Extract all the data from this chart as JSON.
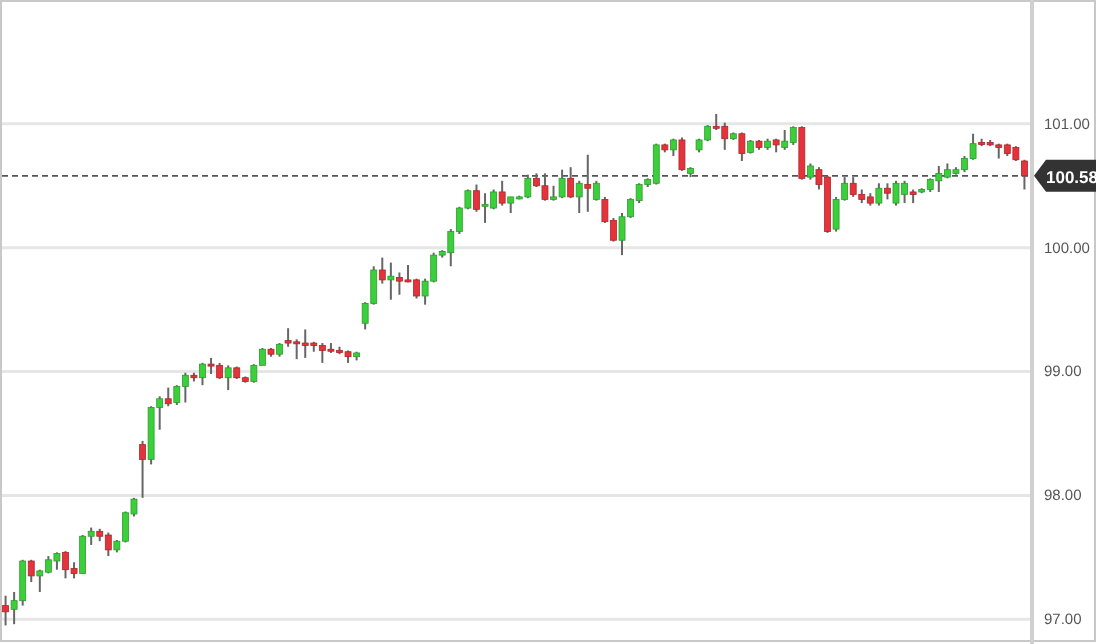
{
  "chart_data": {
    "type": "candlestick",
    "categories": [
      null,
      null,
      null,
      null,
      null,
      null,
      null,
      null,
      null,
      null,
      null,
      null,
      null,
      null,
      null,
      null,
      null,
      null,
      null,
      null,
      null,
      null,
      null,
      null,
      null,
      null,
      null,
      null,
      null,
      null,
      null,
      null,
      null,
      null,
      null,
      null,
      null,
      null,
      null,
      null,
      null,
      null,
      null,
      null,
      null,
      null,
      null,
      null,
      null,
      null,
      null,
      null,
      null,
      null,
      null,
      null,
      null,
      null,
      null,
      null,
      null,
      null,
      null,
      null,
      null,
      null,
      null,
      null,
      null,
      null,
      null,
      null,
      null,
      null,
      null,
      null,
      null,
      null,
      null,
      null,
      null,
      null,
      null,
      null,
      null,
      null,
      null,
      null,
      null,
      null,
      null,
      null,
      null,
      null,
      null,
      null,
      null,
      null,
      null,
      null,
      null,
      null,
      null,
      null,
      null,
      null,
      null,
      null,
      null,
      null,
      null,
      null,
      null,
      null,
      null,
      null,
      null,
      null,
      null,
      null
    ],
    "ohlc": [
      [
        97.11,
        97.19,
        96.95,
        97.06
      ],
      [
        97.08,
        97.22,
        96.96,
        97.15
      ],
      [
        97.15,
        97.48,
        97.11,
        97.47
      ],
      [
        97.47,
        97.48,
        97.3,
        97.35
      ],
      [
        97.35,
        97.4,
        97.22,
        97.39
      ],
      [
        97.38,
        97.51,
        97.37,
        97.48
      ],
      [
        97.47,
        97.54,
        97.4,
        97.53
      ],
      [
        97.54,
        97.55,
        97.33,
        97.4
      ],
      [
        97.41,
        97.46,
        97.33,
        97.37
      ],
      [
        97.37,
        97.68,
        97.37,
        97.67
      ],
      [
        97.67,
        97.74,
        97.6,
        97.71
      ],
      [
        97.71,
        97.73,
        97.63,
        97.67
      ],
      [
        97.68,
        97.7,
        97.51,
        97.56
      ],
      [
        97.56,
        97.64,
        97.54,
        97.63
      ],
      [
        97.63,
        97.87,
        97.62,
        97.86
      ],
      [
        97.85,
        97.98,
        97.83,
        97.97
      ],
      [
        98.41,
        98.44,
        97.98,
        98.29
      ],
      [
        98.29,
        98.72,
        98.25,
        98.71
      ],
      [
        98.71,
        98.8,
        98.53,
        98.78
      ],
      [
        98.78,
        98.87,
        98.72,
        98.74
      ],
      [
        98.75,
        98.89,
        98.73,
        98.88
      ],
      [
        98.88,
        98.99,
        98.75,
        98.97
      ],
      [
        98.97,
        98.99,
        98.92,
        98.95
      ],
      [
        98.95,
        99.07,
        98.89,
        99.06
      ],
      [
        99.06,
        99.11,
        98.98,
        99.05
      ],
      [
        99.05,
        99.07,
        98.94,
        98.95
      ],
      [
        98.95,
        99.05,
        98.85,
        99.03
      ],
      [
        99.03,
        99.04,
        98.94,
        98.95
      ],
      [
        98.95,
        98.96,
        98.91,
        98.92
      ],
      [
        98.92,
        99.06,
        98.91,
        99.05
      ],
      [
        99.05,
        99.19,
        99.05,
        99.18
      ],
      [
        99.18,
        99.19,
        99.12,
        99.14
      ],
      [
        99.14,
        99.23,
        99.12,
        99.22
      ],
      [
        99.25,
        99.35,
        99.2,
        99.23
      ],
      [
        99.24,
        99.26,
        99.1,
        99.23
      ],
      [
        99.23,
        99.34,
        99.11,
        99.21
      ],
      [
        99.23,
        99.24,
        99.16,
        99.21
      ],
      [
        99.21,
        99.23,
        99.07,
        99.17
      ],
      [
        99.18,
        99.23,
        99.15,
        99.17
      ],
      [
        99.17,
        99.2,
        99.14,
        99.16
      ],
      [
        99.16,
        99.17,
        99.07,
        99.12
      ],
      [
        99.12,
        99.16,
        99.09,
        99.15
      ],
      [
        99.39,
        99.56,
        99.34,
        99.55
      ],
      [
        99.55,
        99.85,
        99.54,
        99.82
      ],
      [
        99.82,
        99.92,
        99.71,
        99.74
      ],
      [
        99.74,
        99.88,
        99.58,
        99.77
      ],
      [
        99.76,
        99.8,
        99.62,
        99.73
      ],
      [
        99.74,
        99.86,
        99.72,
        99.73
      ],
      [
        99.74,
        99.75,
        99.59,
        99.61
      ],
      [
        99.61,
        99.75,
        99.54,
        99.73
      ],
      [
        99.73,
        99.96,
        99.72,
        99.94
      ],
      [
        99.94,
        99.98,
        99.92,
        99.97
      ],
      [
        99.96,
        100.15,
        99.85,
        100.13
      ],
      [
        100.13,
        100.33,
        100.11,
        100.32
      ],
      [
        100.32,
        100.47,
        100.31,
        100.46
      ],
      [
        100.46,
        100.51,
        100.29,
        100.31
      ],
      [
        100.34,
        100.44,
        100.2,
        100.35
      ],
      [
        100.32,
        100.47,
        100.31,
        100.45
      ],
      [
        100.45,
        100.54,
        100.34,
        100.36
      ],
      [
        100.36,
        100.41,
        100.28,
        100.41
      ],
      [
        100.4,
        100.42,
        100.39,
        100.41
      ],
      [
        100.41,
        100.59,
        100.4,
        100.56
      ],
      [
        100.56,
        100.6,
        100.49,
        100.5
      ],
      [
        100.5,
        100.6,
        100.38,
        100.39
      ],
      [
        100.39,
        100.5,
        100.38,
        100.41
      ],
      [
        100.41,
        100.63,
        100.4,
        100.56
      ],
      [
        100.56,
        100.65,
        100.4,
        100.41
      ],
      [
        100.41,
        100.54,
        100.28,
        100.52
      ],
      [
        100.51,
        100.75,
        100.29,
        100.48
      ],
      [
        100.39,
        100.54,
        100.38,
        100.52
      ],
      [
        100.39,
        100.41,
        100.2,
        100.21
      ],
      [
        100.22,
        100.24,
        100.05,
        100.06
      ],
      [
        100.06,
        100.28,
        99.94,
        100.25
      ],
      [
        100.25,
        100.4,
        100.24,
        100.39
      ],
      [
        100.38,
        100.52,
        100.36,
        100.51
      ],
      [
        100.51,
        100.56,
        100.49,
        100.55
      ],
      [
        100.52,
        100.84,
        100.51,
        100.83
      ],
      [
        100.83,
        100.84,
        100.77,
        100.79
      ],
      [
        100.79,
        100.88,
        100.74,
        100.87
      ],
      [
        100.87,
        100.89,
        100.62,
        100.63
      ],
      [
        100.6,
        100.65,
        100.57,
        100.64
      ],
      [
        100.79,
        100.88,
        100.77,
        100.87
      ],
      [
        100.87,
        100.99,
        100.86,
        100.98
      ],
      [
        100.98,
        101.08,
        100.95,
        100.97
      ],
      [
        100.98,
        101.01,
        100.79,
        100.88
      ],
      [
        100.88,
        100.93,
        100.87,
        100.92
      ],
      [
        100.92,
        100.93,
        100.7,
        100.76
      ],
      [
        100.77,
        100.87,
        100.76,
        100.86
      ],
      [
        100.86,
        100.87,
        100.79,
        100.81
      ],
      [
        100.81,
        100.88,
        100.79,
        100.86
      ],
      [
        100.87,
        100.88,
        100.77,
        100.83
      ],
      [
        100.81,
        100.95,
        100.79,
        100.86
      ],
      [
        100.85,
        100.98,
        100.83,
        100.97
      ],
      [
        100.97,
        100.98,
        100.55,
        100.56
      ],
      [
        100.57,
        100.68,
        100.55,
        100.66
      ],
      [
        100.63,
        100.65,
        100.47,
        100.51
      ],
      [
        100.57,
        100.58,
        100.12,
        100.13
      ],
      [
        100.15,
        100.41,
        100.13,
        100.39
      ],
      [
        100.39,
        100.57,
        100.38,
        100.52
      ],
      [
        100.52,
        100.57,
        100.41,
        100.43
      ],
      [
        100.43,
        100.47,
        100.36,
        100.39
      ],
      [
        100.41,
        100.44,
        100.34,
        100.36
      ],
      [
        100.36,
        100.52,
        100.34,
        100.48
      ],
      [
        100.48,
        100.52,
        100.39,
        100.44
      ],
      [
        100.36,
        100.54,
        100.34,
        100.52
      ],
      [
        100.43,
        100.54,
        100.36,
        100.52
      ],
      [
        100.45,
        100.47,
        100.36,
        100.43
      ],
      [
        100.45,
        100.48,
        100.44,
        100.47
      ],
      [
        100.47,
        100.56,
        100.45,
        100.55
      ],
      [
        100.54,
        100.66,
        100.45,
        100.6
      ],
      [
        100.57,
        100.68,
        100.56,
        100.63
      ],
      [
        100.6,
        100.65,
        100.59,
        100.63
      ],
      [
        100.63,
        100.74,
        100.61,
        100.72
      ],
      [
        100.72,
        100.92,
        100.71,
        100.84
      ],
      [
        100.85,
        100.88,
        100.82,
        100.84
      ],
      [
        100.85,
        100.87,
        100.82,
        100.83
      ],
      [
        100.83,
        100.84,
        100.72,
        100.81
      ],
      [
        100.83,
        100.84,
        100.74,
        100.76
      ],
      [
        100.81,
        100.82,
        100.7,
        100.71
      ],
      [
        100.7,
        100.71,
        100.47,
        100.58
      ]
    ],
    "colors": [
      "#e5333b",
      "#3ccf3c",
      "#3ccf3c",
      "#e5333b",
      "#3ccf3c",
      "#3ccf3c",
      "#3ccf3c",
      "#e5333b",
      "#e5333b",
      "#3ccf3c",
      "#3ccf3c",
      "#e5333b",
      "#e5333b",
      "#3ccf3c",
      "#3ccf3c",
      "#3ccf3c",
      "#e5333b",
      "#3ccf3c",
      "#3ccf3c",
      "#e5333b",
      "#3ccf3c",
      "#3ccf3c",
      "#e5333b",
      "#3ccf3c",
      "#e5333b",
      "#e5333b",
      "#3ccf3c",
      "#e5333b",
      "#e5333b",
      "#3ccf3c",
      "#3ccf3c",
      "#e5333b",
      "#3ccf3c",
      "#e5333b",
      "#e5333b",
      "#e5333b",
      "#e5333b",
      "#e5333b",
      "#e5333b",
      "#e5333b",
      "#e5333b",
      "#3ccf3c",
      "#3ccf3c",
      "#3ccf3c",
      "#e5333b",
      "#3ccf3c",
      "#e5333b",
      "#e5333b",
      "#e5333b",
      "#3ccf3c",
      "#3ccf3c",
      "#3ccf3c",
      "#3ccf3c",
      "#3ccf3c",
      "#3ccf3c",
      "#e5333b",
      "#3ccf3c",
      "#3ccf3c",
      "#e5333b",
      "#3ccf3c",
      "#3ccf3c",
      "#3ccf3c",
      "#e5333b",
      "#e5333b",
      "#3ccf3c",
      "#3ccf3c",
      "#e5333b",
      "#3ccf3c",
      "#e5333b",
      "#3ccf3c",
      "#e5333b",
      "#e5333b",
      "#3ccf3c",
      "#3ccf3c",
      "#3ccf3c",
      "#3ccf3c",
      "#3ccf3c",
      "#e5333b",
      "#3ccf3c",
      "#e5333b",
      "#3ccf3c",
      "#3ccf3c",
      "#3ccf3c",
      "#e5333b",
      "#e5333b",
      "#3ccf3c",
      "#e5333b",
      "#3ccf3c",
      "#e5333b",
      "#3ccf3c",
      "#e5333b",
      "#3ccf3c",
      "#3ccf3c",
      "#e5333b",
      "#3ccf3c",
      "#e5333b",
      "#e5333b",
      "#3ccf3c",
      "#3ccf3c",
      "#e5333b",
      "#e5333b",
      "#e5333b",
      "#3ccf3c",
      "#e5333b",
      "#3ccf3c",
      "#3ccf3c",
      "#e5333b",
      "#3ccf3c",
      "#3ccf3c",
      "#3ccf3c",
      "#3ccf3c",
      "#3ccf3c",
      "#3ccf3c",
      "#3ccf3c",
      "#e5333b",
      "#e5333b",
      "#e5333b",
      "#e5333b",
      "#e5333b",
      "#e5333b"
    ],
    "ylim": [
      96.8,
      102.0
    ],
    "yticks": [
      {
        "value": 97,
        "label": "97.00"
      },
      {
        "value": 98,
        "label": "98.00"
      },
      {
        "value": 99,
        "label": "99.00"
      },
      {
        "value": 100,
        "label": "100.00"
      },
      {
        "value": 101,
        "label": "101.00"
      }
    ],
    "grid": "y",
    "tick_labels": "y",
    "ref_lines": [
      {
        "axis": "y",
        "value": 100.58,
        "label": "100.58",
        "line_style": "dashed",
        "color": "#555555"
      }
    ]
  }
}
